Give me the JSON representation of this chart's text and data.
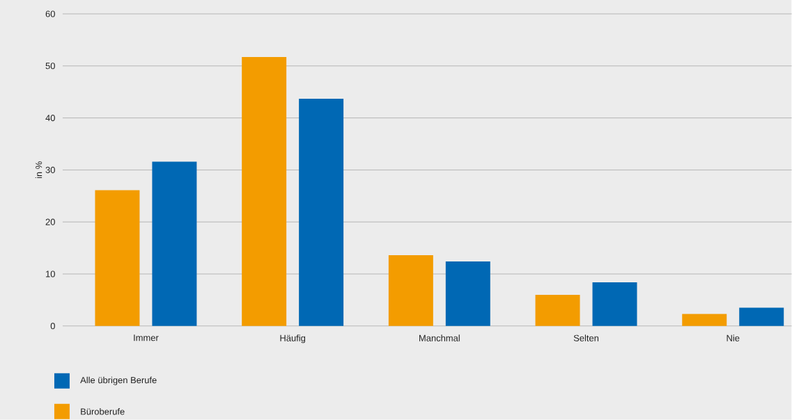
{
  "chart_data": {
    "type": "bar",
    "ylabel": "in %",
    "categories": [
      "Immer",
      "Häufig",
      "Manchmal",
      "Selten",
      "Nie"
    ],
    "series": [
      {
        "name": "Büroberufe",
        "color": "#f39c00",
        "values": [
          26.1,
          51.7,
          13.6,
          6.0,
          2.3
        ]
      },
      {
        "name": "Alle übrigen Berufe",
        "color": "#0068b4",
        "values": [
          31.6,
          43.7,
          12.4,
          8.4,
          3.5
        ]
      }
    ],
    "ylim": [
      0,
      60
    ],
    "yticks": [
      0,
      10,
      20,
      30,
      40,
      50,
      60
    ],
    "grid": "y",
    "legend": "bottom left"
  }
}
